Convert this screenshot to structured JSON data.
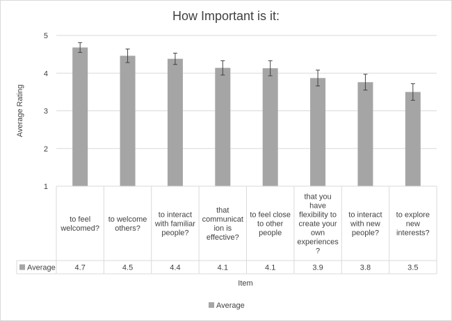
{
  "chart_data": {
    "type": "bar",
    "title": "How Important is it:",
    "xlabel": "Item",
    "ylabel": "Average Rating",
    "ylim": [
      1,
      5
    ],
    "yticks": [
      1,
      2,
      3,
      4,
      5
    ],
    "grid": true,
    "legend_position": "bottom",
    "categories": [
      [
        "to feel",
        "welcomed?"
      ],
      [
        "to welcome",
        "others?"
      ],
      [
        "to interact",
        "with familiar",
        "people?"
      ],
      [
        "that",
        "communicat",
        "ion is",
        "effective?"
      ],
      [
        "to feel close",
        "to other",
        "people"
      ],
      [
        "that you",
        "have",
        "flexibility to",
        "create your",
        "own",
        "experiences",
        "?"
      ],
      [
        "to interact",
        "with new",
        "people?"
      ],
      [
        "to explore",
        "new",
        "interests?"
      ]
    ],
    "series": [
      {
        "name": "Average",
        "color": "#a5a5a5",
        "values": [
          4.68,
          4.46,
          4.38,
          4.14,
          4.13,
          3.87,
          3.76,
          3.5
        ],
        "error": [
          0.13,
          0.18,
          0.15,
          0.19,
          0.2,
          0.21,
          0.21,
          0.22
        ],
        "table_labels": [
          "4.7",
          "4.5",
          "4.4",
          "4.1",
          "4.1",
          "3.9",
          "3.8",
          "3.5"
        ]
      }
    ]
  }
}
